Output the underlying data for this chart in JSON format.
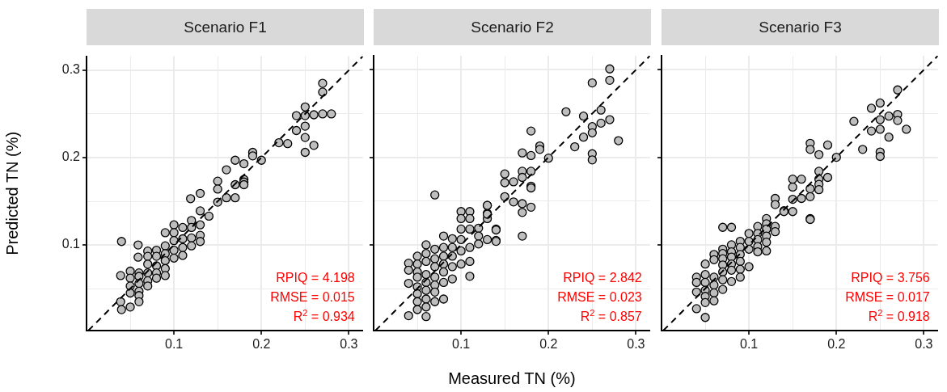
{
  "chart_data": [
    {
      "type": "scatter",
      "title": "Scenario F1",
      "ylabel": "Predicted TN (%)",
      "marker": "circle",
      "grid": true,
      "xlim": [
        0,
        0.316
      ],
      "ylim": [
        0.002,
        0.316
      ],
      "xticks": [
        {
          "value": 0.05,
          "label": null
        },
        0.1,
        {
          "value": 0.15,
          "label": null
        },
        0.2,
        {
          "value": 0.25,
          "label": null
        },
        0.3
      ],
      "yticks": [
        {
          "value": 0.05,
          "label": null
        },
        0.1,
        {
          "value": 0.15,
          "label": null
        },
        0.2,
        {
          "value": 0.25,
          "label": null
        },
        0.3
      ],
      "annotations": [
        "RPIQ = 4.198",
        "RMSE = 0.015",
        "R$^{2}$ = 0.934"
      ],
      "series": [
        {
          "type": "scatter",
          "color": "#bebebe",
          "x": [
            0.04,
            0.059,
            0.039,
            0.039,
            0.04,
            0.05,
            0.05,
            0.05,
            0.05,
            0.05,
            0.06,
            0.06,
            0.06,
            0.06,
            0.06,
            0.06,
            0.07,
            0.07,
            0.07,
            0.07,
            0.07,
            0.07,
            0.059,
            0.08,
            0.08,
            0.08,
            0.08,
            0.08,
            0.09,
            0.09,
            0.09,
            0.09,
            0.09,
            0.1,
            0.1,
            0.1,
            0.1,
            0.1,
            0.09,
            0.11,
            0.11,
            0.11,
            0.11,
            0.12,
            0.12,
            0.12,
            0.12,
            0.13,
            0.13,
            0.13,
            0.119,
            0.13,
            0.13,
            0.14,
            0.15,
            0.15,
            0.15,
            0.16,
            0.16,
            0.17,
            0.17,
            0.18,
            0.17,
            0.18,
            0.18,
            0.18,
            0.19,
            0.19,
            0.2,
            0.22,
            0.23,
            0.24,
            0.24,
            0.25,
            0.25,
            0.25,
            0.25,
            0.25,
            0.26,
            0.26,
            0.27,
            0.28,
            0.27,
            0.27
          ],
          "values": [
            0.104,
            0.1,
            0.065,
            0.035,
            0.026,
            0.07,
            0.062,
            0.053,
            0.045,
            0.029,
            0.068,
            0.064,
            0.056,
            0.047,
            0.042,
            0.035,
            0.093,
            0.087,
            0.078,
            0.068,
            0.059,
            0.053,
            0.086,
            0.094,
            0.087,
            0.076,
            0.068,
            0.062,
            0.099,
            0.09,
            0.082,
            0.073,
            0.065,
            0.123,
            0.114,
            0.105,
            0.094,
            0.085,
            0.114,
            0.12,
            0.107,
            0.097,
            0.088,
            0.128,
            0.12,
            0.108,
            0.099,
            0.123,
            0.111,
            0.104,
            0.153,
            0.159,
            0.139,
            0.133,
            0.173,
            0.164,
            0.149,
            0.186,
            0.154,
            0.154,
            0.197,
            0.193,
            0.169,
            0.175,
            0.172,
            0.169,
            0.206,
            0.202,
            0.197,
            0.217,
            0.216,
            0.231,
            0.248,
            0.258,
            0.248,
            0.236,
            0.223,
            0.206,
            0.249,
            0.214,
            0.25,
            0.25,
            0.285,
            0.275
          ]
        },
        {
          "type": "line",
          "color": "#000000",
          "marker": "none",
          "line_style": "dashed",
          "x": [
            0.002,
            0.316
          ],
          "values": [
            0.002,
            0.316
          ]
        }
      ]
    },
    {
      "type": "scatter",
      "title": "Scenario F2",
      "xlabel": "Measured TN (%)",
      "marker": "circle",
      "grid": true,
      "tick_labels": "x",
      "xlim": [
        0,
        0.316
      ],
      "ylim": [
        0.002,
        0.316
      ],
      "xticks": [
        {
          "value": 0.05,
          "label": null
        },
        0.1,
        {
          "value": 0.15,
          "label": null
        },
        0.2,
        {
          "value": 0.25,
          "label": null
        },
        0.3
      ],
      "yticks": [
        {
          "value": 0.05,
          "label": null
        },
        0.1,
        {
          "value": 0.15,
          "label": null
        },
        0.2,
        {
          "value": 0.25,
          "label": null
        },
        0.3
      ],
      "annotations": [
        "RPIQ = 2.842",
        "RMSE = 0.023",
        "R$^{2}$ = 0.857"
      ],
      "series": [
        {
          "type": "scatter",
          "color": "#bebebe",
          "x": [
            0.07,
            0.04,
            0.06,
            0.04,
            0.04,
            0.04,
            0.05,
            0.05,
            0.05,
            0.05,
            0.05,
            0.05,
            0.05,
            0.05,
            0.06,
            0.06,
            0.06,
            0.06,
            0.06,
            0.06,
            0.06,
            0.06,
            0.07,
            0.07,
            0.07,
            0.07,
            0.07,
            0.07,
            0.07,
            0.08,
            0.08,
            0.08,
            0.08,
            0.08,
            0.08,
            0.08,
            0.09,
            0.09,
            0.09,
            0.09,
            0.09,
            0.1,
            0.1,
            0.1,
            0.1,
            0.1,
            0.1,
            0.11,
            0.11,
            0.11,
            0.11,
            0.11,
            0.11,
            0.12,
            0.12,
            0.12,
            0.13,
            0.13,
            0.13,
            0.14,
            0.14,
            0.13,
            0.13,
            0.13,
            0.14,
            0.14,
            0.15,
            0.15,
            0.15,
            0.16,
            0.16,
            0.17,
            0.17,
            0.17,
            0.17,
            0.17,
            0.17,
            0.18,
            0.18,
            0.18,
            0.18,
            0.18,
            0.18,
            0.19,
            0.19,
            0.2,
            0.22,
            0.23,
            0.24,
            0.24,
            0.25,
            0.25,
            0.25,
            0.25,
            0.25,
            0.26,
            0.26,
            0.27,
            0.27,
            0.27,
            0.28
          ],
          "values": [
            0.157,
            0.019,
            0.018,
            0.079,
            0.071,
            0.056,
            0.087,
            0.078,
            0.069,
            0.063,
            0.052,
            0.044,
            0.035,
            0.026,
            0.1,
            0.09,
            0.081,
            0.066,
            0.057,
            0.048,
            0.038,
            0.029,
            0.095,
            0.084,
            0.075,
            0.063,
            0.054,
            0.046,
            0.035,
            0.11,
            0.097,
            0.087,
            0.078,
            0.069,
            0.057,
            0.038,
            0.107,
            0.097,
            0.087,
            0.075,
            0.061,
            0.138,
            0.13,
            0.118,
            0.106,
            0.093,
            0.078,
            0.138,
            0.13,
            0.118,
            0.097,
            0.081,
            0.064,
            0.119,
            0.11,
            0.101,
            0.145,
            0.136,
            0.106,
            0.118,
            0.105,
            0.13,
            0.135,
            0.145,
            0.117,
            0.104,
            0.181,
            0.171,
            0.155,
            0.172,
            0.149,
            0.205,
            0.184,
            0.177,
            0.147,
            0.137,
            0.11,
            0.23,
            0.202,
            0.184,
            0.167,
            0.165,
            0.143,
            0.213,
            0.209,
            0.199,
            0.252,
            0.212,
            0.247,
            0.223,
            0.285,
            0.235,
            0.228,
            0.204,
            0.197,
            0.254,
            0.239,
            0.301,
            0.288,
            0.243,
            0.219
          ]
        },
        {
          "type": "line",
          "color": "#000000",
          "marker": "none",
          "line_style": "dashed",
          "x": [
            0.002,
            0.316
          ],
          "values": [
            0.002,
            0.316
          ]
        }
      ]
    },
    {
      "type": "scatter",
      "title": "Scenario F3",
      "marker": "circle",
      "grid": true,
      "tick_labels": "x",
      "xlim": [
        0,
        0.316
      ],
      "ylim": [
        0.002,
        0.316
      ],
      "xticks": [
        {
          "value": 0.05,
          "label": null
        },
        0.1,
        {
          "value": 0.15,
          "label": null
        },
        0.2,
        {
          "value": 0.25,
          "label": null
        },
        0.3
      ],
      "yticks": [
        {
          "value": 0.05,
          "label": null
        },
        0.1,
        {
          "value": 0.15,
          "label": null
        },
        0.2,
        {
          "value": 0.25,
          "label": null
        },
        0.3
      ],
      "annotations": [
        "RPIQ = 3.756",
        "RMSE = 0.017",
        "R$^{2}$ = 0.918"
      ],
      "series": [
        {
          "type": "scatter",
          "color": "#bebebe",
          "x": [
            0.04,
            0.05,
            0.04,
            0.04,
            0.04,
            0.05,
            0.05,
            0.05,
            0.05,
            0.05,
            0.05,
            0.06,
            0.06,
            0.06,
            0.06,
            0.06,
            0.06,
            0.07,
            0.08,
            0.07,
            0.07,
            0.07,
            0.07,
            0.07,
            0.07,
            0.07,
            0.08,
            0.08,
            0.08,
            0.08,
            0.08,
            0.08,
            0.09,
            0.09,
            0.09,
            0.09,
            0.09,
            0.09,
            0.1,
            0.1,
            0.1,
            0.1,
            0.11,
            0.11,
            0.11,
            0.11,
            0.11,
            0.12,
            0.12,
            0.12,
            0.12,
            0.12,
            0.12,
            0.13,
            0.13,
            0.13,
            0.13,
            0.14,
            0.15,
            0.15,
            0.15,
            0.15,
            0.16,
            0.16,
            0.17,
            0.17,
            0.17,
            0.18,
            0.19,
            0.18,
            0.18,
            0.18,
            0.18,
            0.19,
            0.17,
            0.17,
            0.17,
            0.14,
            0.2,
            0.22,
            0.23,
            0.24,
            0.24,
            0.25,
            0.25,
            0.25,
            0.25,
            0.25,
            0.26,
            0.26,
            0.27,
            0.27,
            0.27,
            0.28
          ],
          "values": [
            0.027,
            0.017,
            0.063,
            0.057,
            0.046,
            0.078,
            0.066,
            0.057,
            0.048,
            0.041,
            0.034,
            0.089,
            0.083,
            0.063,
            0.054,
            0.045,
            0.036,
            0.12,
            0.12,
            0.095,
            0.09,
            0.084,
            0.077,
            0.069,
            0.06,
            0.049,
            0.1,
            0.092,
            0.086,
            0.078,
            0.071,
            0.058,
            0.104,
            0.097,
            0.089,
            0.081,
            0.072,
            0.063,
            0.113,
            0.104,
            0.095,
            0.075,
            0.121,
            0.113,
            0.106,
            0.098,
            0.092,
            0.13,
            0.124,
            0.118,
            0.11,
            0.103,
            0.093,
            0.121,
            0.115,
            0.153,
            0.146,
            0.139,
            0.138,
            0.152,
            0.166,
            0.175,
            0.175,
            0.153,
            0.13,
            0.216,
            0.209,
            0.203,
            0.214,
            0.184,
            0.175,
            0.169,
            0.163,
            0.177,
            0.164,
            0.155,
            0.129,
            0.138,
            0.2,
            0.241,
            0.209,
            0.256,
            0.23,
            0.262,
            0.243,
            0.232,
            0.206,
            0.201,
            0.247,
            0.223,
            0.277,
            0.249,
            0.242,
            0.232
          ]
        },
        {
          "type": "line",
          "color": "#000000",
          "marker": "none",
          "line_style": "dashed",
          "x": [
            0.002,
            0.316
          ],
          "values": [
            0.002,
            0.316
          ]
        }
      ]
    }
  ]
}
